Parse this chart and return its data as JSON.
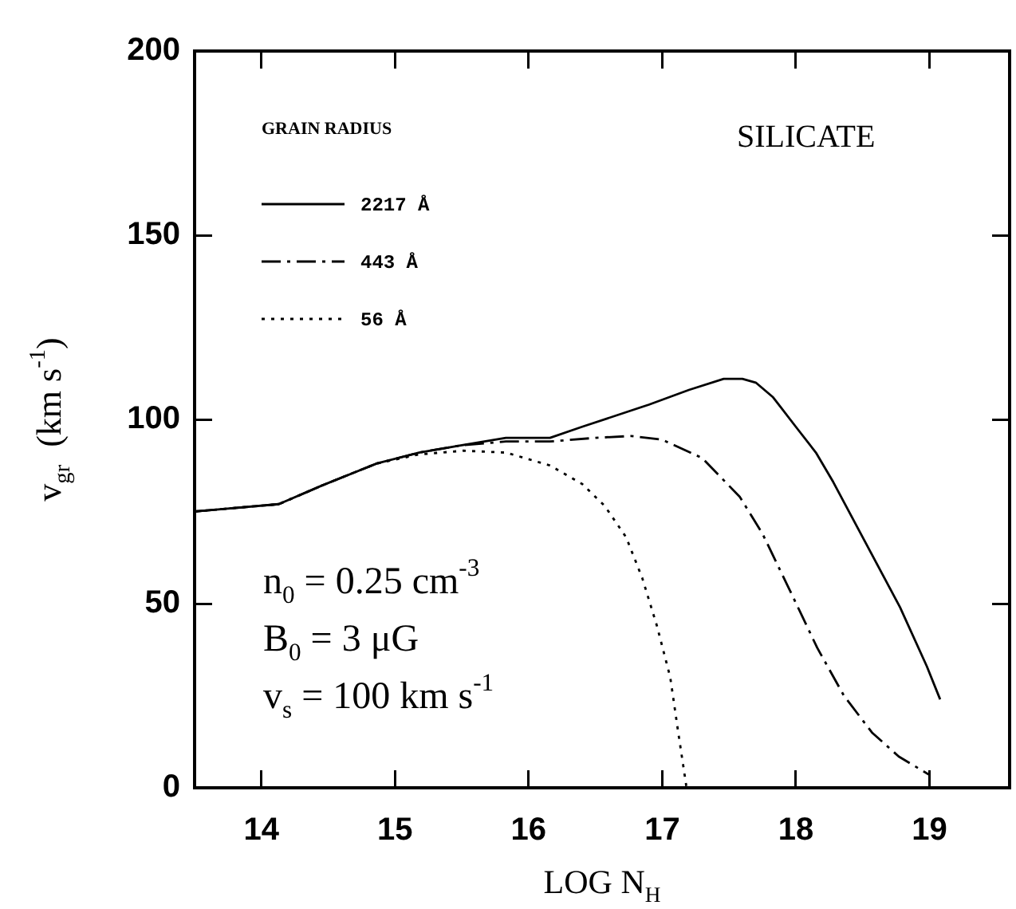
{
  "chart_data": {
    "type": "line",
    "xlabel": "LOG N$_{H}$",
    "ylabel": "v$_{gr}$  (km s$^{-1}$)",
    "legend_title": "GRAIN RADIUS",
    "legend": "top left",
    "xlim": [
      13.5,
      19.6
    ],
    "xticks": [
      14,
      15,
      16,
      17,
      18,
      19
    ],
    "ylim": [
      0,
      200
    ],
    "yticks": [
      0,
      50,
      100,
      150,
      200
    ],
    "grid": false,
    "marker": "none",
    "annotations": [
      "SILICATE",
      "n$_{0}$ = 0.25 cm$^{-3}$",
      "B$_{0}$ = 3 μG",
      "v$_{s}$ = 100 km s$^{-1}$"
    ],
    "series": [
      {
        "name": "2217 Å",
        "color": "#000000",
        "line_style": "solid",
        "x": [
          13.5,
          14.13,
          14.45,
          14.86,
          15.18,
          15.5,
          15.83,
          16.16,
          16.4,
          16.9,
          17.2,
          17.46,
          17.6,
          17.7,
          17.83,
          18.0,
          18.15,
          18.28,
          18.53,
          18.78,
          18.98,
          19.08
        ],
        "values": [
          75,
          77,
          82,
          88,
          91,
          93,
          95,
          95,
          98,
          104,
          108,
          111,
          111,
          110,
          106,
          98,
          91,
          83,
          66,
          49,
          33,
          24
        ]
      },
      {
        "name": "443 Å",
        "color": "#000000",
        "line_style": "dashed",
        "x": [
          13.5,
          14.13,
          14.45,
          14.86,
          15.18,
          15.5,
          15.83,
          16.16,
          16.5,
          16.77,
          17.0,
          17.3,
          17.58,
          17.75,
          17.95,
          18.16,
          18.36,
          18.57,
          18.77,
          19.0
        ],
        "values": [
          75,
          77,
          82,
          88,
          91,
          93,
          94,
          94,
          95,
          95.5,
          94.5,
          89.5,
          79,
          69,
          54,
          38,
          25,
          15,
          8.5,
          3.5
        ]
      },
      {
        "name": "56 Å",
        "color": "#000000",
        "line_style": "dotted",
        "x": [
          13.5,
          14.13,
          14.45,
          14.86,
          15.18,
          15.51,
          15.83,
          16.16,
          16.4,
          16.57,
          16.73,
          16.85,
          16.96,
          17.06,
          17.12,
          17.18
        ],
        "values": [
          75,
          77,
          82,
          88,
          90.5,
          91.5,
          91,
          87.5,
          82.5,
          76.5,
          68,
          57,
          44,
          30,
          15,
          0.5
        ]
      }
    ]
  }
}
